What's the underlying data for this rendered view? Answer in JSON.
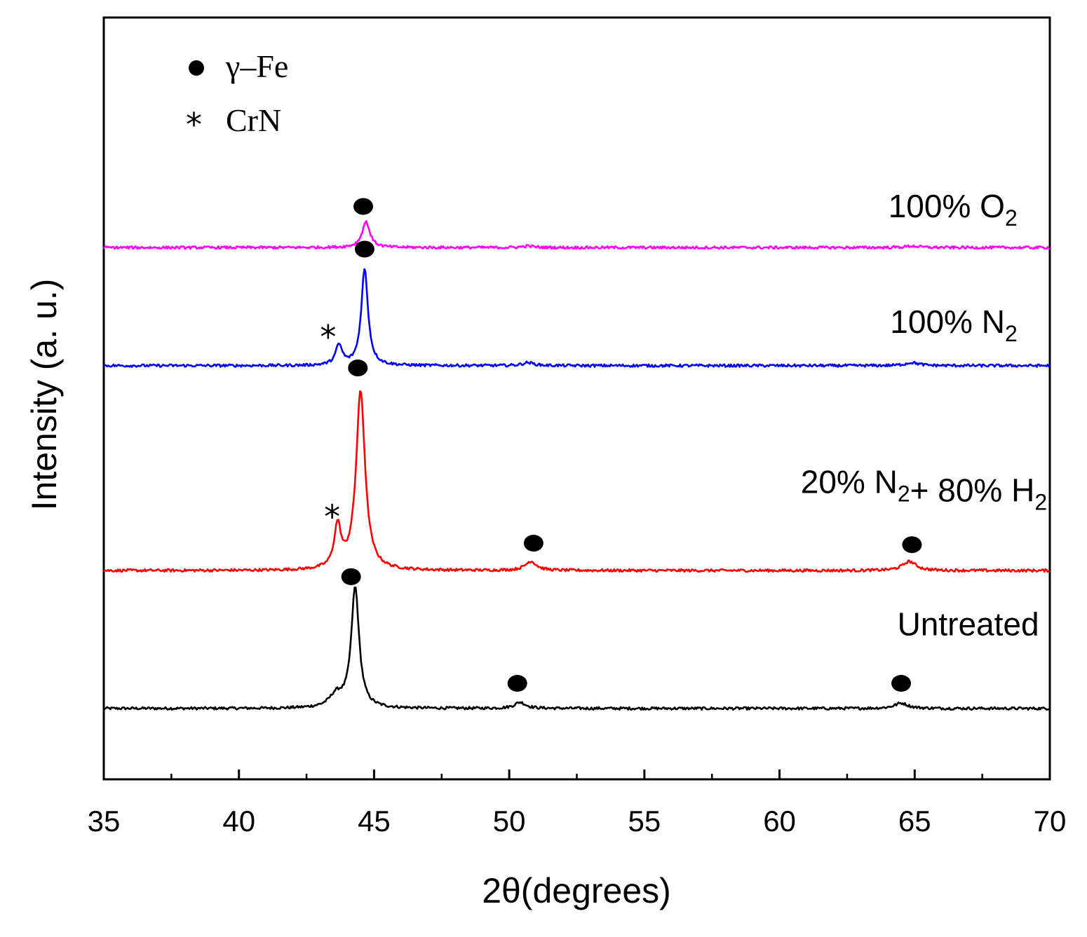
{
  "chart_data": {
    "type": "line",
    "title": "",
    "xlabel": "2θ(degrees)",
    "ylabel": "Intensity (a. u.)",
    "xlim": [
      35,
      70
    ],
    "xticks": [
      35,
      40,
      45,
      50,
      55,
      60,
      65,
      70
    ],
    "xtick_labels": [
      "35",
      "40",
      "45",
      "50",
      "55",
      "60",
      "65",
      "70"
    ],
    "ylim": [
      0,
      100
    ],
    "yticks_shown": false,
    "legend": {
      "placement": "top-left",
      "items": [
        {
          "marker": "circle",
          "label": "γ–Fe"
        },
        {
          "marker": "star",
          "label": "CrN"
        }
      ]
    },
    "series": [
      {
        "name": "Untreated",
        "color": "#000000",
        "baseline": 9.3,
        "peaks": [
          {
            "x": 44.3,
            "height": 15.8,
            "width": 0.35,
            "phase": "γ-Fe"
          },
          {
            "x": 43.6,
            "height": 1.6,
            "width": 0.6
          },
          {
            "x": 50.4,
            "height": 0.8,
            "width": 0.5,
            "phase": "γ-Fe"
          },
          {
            "x": 64.5,
            "height": 0.7,
            "width": 0.6,
            "phase": "γ-Fe"
          }
        ],
        "label_parts": [
          {
            "text": "Untreated"
          }
        ],
        "label_x": 69.6,
        "label_y": 18.9
      },
      {
        "name": "20% N2 + 80% H2",
        "color": "#ff0000",
        "baseline": 27.4,
        "peaks": [
          {
            "x": 44.5,
            "height": 23.5,
            "width": 0.4,
            "phase": "γ-Fe"
          },
          {
            "x": 43.65,
            "height": 5.5,
            "width": 0.3,
            "phase": "CrN"
          },
          {
            "x": 50.8,
            "height": 1.2,
            "width": 0.5,
            "phase": "γ-Fe"
          },
          {
            "x": 64.8,
            "height": 1.2,
            "width": 0.6,
            "phase": "γ-Fe"
          }
        ],
        "label_parts": [
          {
            "text": "20% N"
          },
          {
            "text": "2",
            "sub": true
          },
          {
            "text": "+ 80% H"
          },
          {
            "text": "2",
            "sub": true
          }
        ],
        "label_x": 69.9,
        "label_y": 37.6
      },
      {
        "name": "100% N2",
        "color": "#0000ff",
        "baseline": 54.3,
        "peaks": [
          {
            "x": 44.65,
            "height": 12.7,
            "width": 0.3,
            "phase": "γ-Fe"
          },
          {
            "x": 43.7,
            "height": 2.6,
            "width": 0.3,
            "phase": "CrN"
          },
          {
            "x": 50.7,
            "height": 0.4,
            "width": 0.5
          },
          {
            "x": 64.9,
            "height": 0.4,
            "width": 0.6
          }
        ],
        "label_parts": [
          {
            "text": "100% N"
          },
          {
            "text": "2",
            "sub": true
          }
        ],
        "label_x": 68.8,
        "label_y": 58.6
      },
      {
        "name": "100% O2",
        "color": "#ff00ff",
        "baseline": 69.8,
        "peaks": [
          {
            "x": 44.7,
            "height": 3.4,
            "width": 0.35,
            "phase": "γ-Fe"
          },
          {
            "x": 50.7,
            "height": 0.2,
            "width": 0.5
          },
          {
            "x": 64.9,
            "height": 0.2,
            "width": 0.6
          }
        ],
        "label_parts": [
          {
            "text": "100% O"
          },
          {
            "text": "2",
            "sub": true
          }
        ],
        "label_x": 68.8,
        "label_y": 73.8
      }
    ],
    "phase_markers": [
      {
        "series": "Untreated",
        "type": "circle",
        "x": 44.15,
        "y": 26.6
      },
      {
        "series": "Untreated",
        "type": "circle",
        "x": 50.3,
        "y": 12.6
      },
      {
        "series": "Untreated",
        "type": "circle",
        "x": 64.5,
        "y": 12.6
      },
      {
        "series": "20% N2 + 80% H2",
        "type": "circle",
        "x": 44.4,
        "y": 54.0
      },
      {
        "series": "20% N2 + 80% H2",
        "type": "star",
        "x": 43.45,
        "y": 34.8
      },
      {
        "series": "20% N2 + 80% H2",
        "type": "circle",
        "x": 50.9,
        "y": 31.0
      },
      {
        "series": "20% N2 + 80% H2",
        "type": "circle",
        "x": 64.9,
        "y": 30.8
      },
      {
        "series": "100% N2",
        "type": "circle",
        "x": 44.65,
        "y": 69.6
      },
      {
        "series": "100% N2",
        "type": "star",
        "x": 43.3,
        "y": 58.4
      },
      {
        "series": "100% O2",
        "type": "circle",
        "x": 44.6,
        "y": 75.2
      }
    ]
  }
}
